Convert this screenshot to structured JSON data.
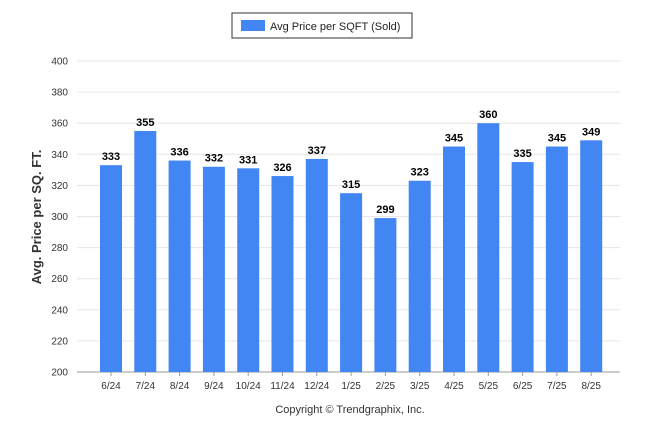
{
  "chart_data": {
    "type": "bar",
    "legend": "Avg Price per SQFT (Sold)",
    "legend_position": "top-center",
    "ylabel": "Avg. Price per SQ. FT.",
    "ylim": [
      200,
      400
    ],
    "yticks": [
      200,
      220,
      240,
      260,
      280,
      300,
      320,
      340,
      360,
      380,
      400
    ],
    "grid": true,
    "categories": [
      "6/24",
      "7/24",
      "8/24",
      "9/24",
      "10/24",
      "11/24",
      "12/24",
      "1/25",
      "2/25",
      "3/25",
      "4/25",
      "5/25",
      "6/25",
      "7/25",
      "8/25"
    ],
    "values": [
      333,
      355,
      336,
      332,
      331,
      326,
      337,
      315,
      299,
      323,
      345,
      360,
      335,
      345,
      349
    ],
    "bar_color": "#4286f4",
    "footer": "Copyright © Trendgraphix, Inc."
  }
}
